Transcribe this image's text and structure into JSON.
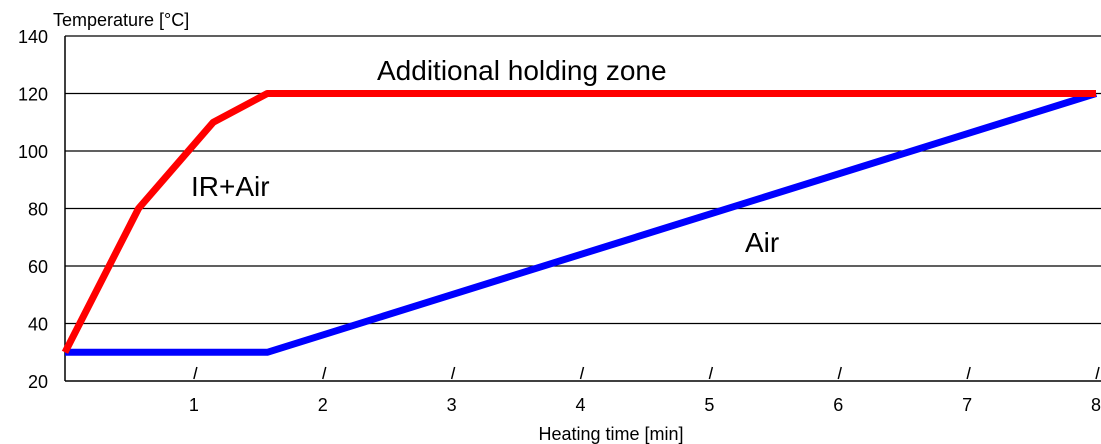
{
  "chart_data": {
    "type": "line",
    "xlabel": "Heating time [min]",
    "ylabel": "Temperature [°C]",
    "xlim": [
      0,
      8
    ],
    "ylim": [
      20,
      140
    ],
    "x_ticks": [
      1,
      2,
      3,
      4,
      5,
      6,
      7,
      8
    ],
    "y_ticks": [
      20,
      40,
      60,
      80,
      100,
      120,
      140
    ],
    "grid": "horizontal",
    "legend": "none",
    "series": [
      {
        "label": "IR+Air",
        "color": "#ff0000",
        "points": [
          [
            0,
            30
          ],
          [
            0.57,
            80
          ],
          [
            1.15,
            110
          ],
          [
            1.57,
            120
          ],
          [
            8,
            120
          ]
        ]
      },
      {
        "label": "Air",
        "color": "#0000ff",
        "points": [
          [
            0,
            30
          ],
          [
            1.57,
            30
          ],
          [
            8,
            120
          ]
        ]
      }
    ],
    "annotations": [
      {
        "id": "holding-zone",
        "text": "Additional holding zone"
      },
      {
        "id": "ir-air",
        "text": "IR+Air"
      },
      {
        "id": "air",
        "text": "Air"
      }
    ]
  }
}
